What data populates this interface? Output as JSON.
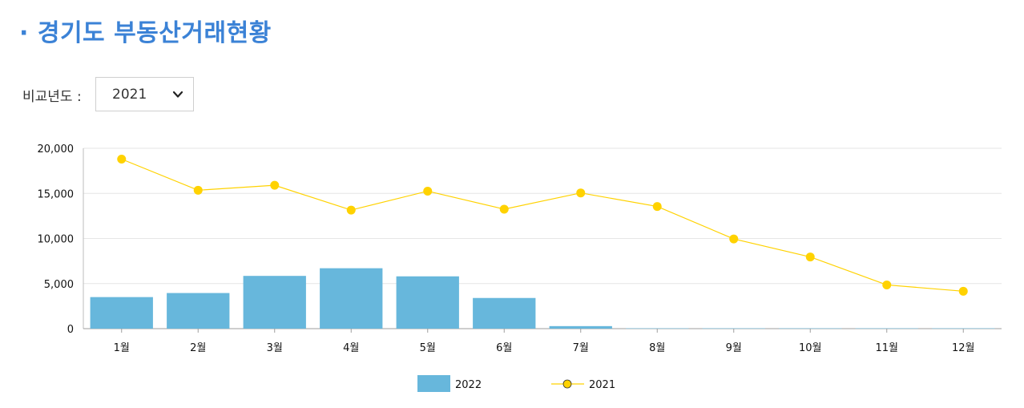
{
  "header": {
    "title": "· 경기도 부동산거래현황"
  },
  "filter": {
    "label": "비교년도 :",
    "selected": "2021",
    "chevron_icon": "chevron-down-icon"
  },
  "chart_data": {
    "type": "bar+line",
    "categories": [
      "1월",
      "2월",
      "3월",
      "4월",
      "5월",
      "6월",
      "7월",
      "8월",
      "9월",
      "10월",
      "11월",
      "12월"
    ],
    "series": [
      {
        "name": "2022",
        "type": "bar",
        "color": "#67b7dc",
        "values": [
          3500,
          3950,
          5850,
          6700,
          5800,
          3400,
          280,
          40,
          40,
          40,
          40,
          40
        ]
      },
      {
        "name": "2021",
        "type": "line",
        "color": "#ffd200",
        "values": [
          18800,
          15350,
          15900,
          13150,
          15250,
          13250,
          15050,
          13550,
          9950,
          7950,
          4850,
          4150
        ]
      }
    ],
    "ylim": [
      0,
      20000
    ],
    "yticks": [
      "0",
      "5,000",
      "10,000",
      "15,000",
      "20,000"
    ],
    "grid": true,
    "legend_position": "bottom-center"
  }
}
